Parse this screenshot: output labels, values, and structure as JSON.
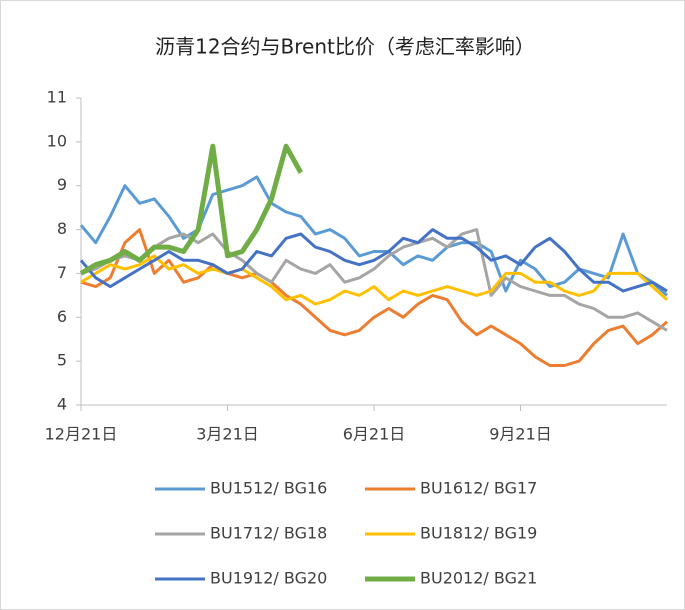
{
  "chart_data": {
    "type": "line",
    "title": "沥青12合约与Brent比价（考虑汇率影响）",
    "x": [
      0,
      9,
      18,
      27,
      36,
      45,
      54,
      63,
      72,
      81,
      90,
      99,
      108,
      117,
      126,
      135,
      144,
      153,
      162,
      171,
      180,
      189,
      198,
      207,
      216,
      225,
      234,
      243,
      252,
      261,
      270,
      279,
      288,
      297,
      306,
      315,
      324,
      333,
      342,
      351,
      360
    ],
    "xlim": [
      0,
      360
    ],
    "xticks": [
      {
        "value": 0,
        "label": "12月21日"
      },
      {
        "value": 90,
        "label": "3月21日"
      },
      {
        "value": 180,
        "label": "6月21日"
      },
      {
        "value": 270,
        "label": "9月21日"
      }
    ],
    "ylim": [
      4,
      11
    ],
    "yticks": [
      4,
      5,
      6,
      7,
      8,
      9,
      10,
      11
    ],
    "grid": false,
    "legend": "bottom",
    "series": [
      {
        "name": "BU1512/ BG16",
        "color": "#5b9bd5",
        "values": [
          8.1,
          7.7,
          8.3,
          9.0,
          8.6,
          8.7,
          8.3,
          7.8,
          8.0,
          8.8,
          8.9,
          9.0,
          9.2,
          8.6,
          8.4,
          8.3,
          7.9,
          8.0,
          7.8,
          7.4,
          7.5,
          7.5,
          7.2,
          7.4,
          7.3,
          7.6,
          7.7,
          7.7,
          7.5,
          6.6,
          7.3,
          7.1,
          6.7,
          6.8,
          7.1,
          7.0,
          6.9,
          7.9,
          7.0,
          6.8,
          6.5
        ]
      },
      {
        "name": "BU1612/ BG17",
        "color": "#ed7d31",
        "values": [
          6.8,
          6.7,
          6.9,
          7.7,
          8.0,
          7.0,
          7.3,
          6.8,
          6.9,
          7.2,
          7.0,
          6.9,
          7.0,
          6.8,
          6.5,
          6.3,
          6.0,
          5.7,
          5.6,
          5.7,
          6.0,
          6.2,
          6.0,
          6.3,
          6.5,
          6.4,
          5.9,
          5.6,
          5.8,
          5.6,
          5.4,
          5.1,
          4.9,
          4.9,
          5.0,
          5.4,
          5.7,
          5.8,
          5.4,
          5.6,
          5.9
        ]
      },
      {
        "name": "BU1712/ BG18",
        "color": "#a5a5a5",
        "values": [
          7.0,
          7.1,
          7.3,
          7.4,
          7.3,
          7.6,
          7.8,
          7.9,
          7.7,
          7.9,
          7.5,
          7.3,
          7.0,
          6.8,
          7.3,
          7.1,
          7.0,
          7.2,
          6.8,
          6.9,
          7.1,
          7.4,
          7.6,
          7.7,
          7.8,
          7.6,
          7.9,
          8.0,
          6.5,
          6.9,
          6.7,
          6.6,
          6.5,
          6.5,
          6.3,
          6.2,
          6.0,
          6.0,
          6.1,
          5.9,
          5.7
        ]
      },
      {
        "name": "BU1812/ BG19",
        "color": "#ffc000",
        "values": [
          6.8,
          7.0,
          7.2,
          7.1,
          7.2,
          7.4,
          7.1,
          7.2,
          7.0,
          7.1,
          7.0,
          7.1,
          6.9,
          6.7,
          6.4,
          6.5,
          6.3,
          6.4,
          6.6,
          6.5,
          6.7,
          6.4,
          6.6,
          6.5,
          6.6,
          6.7,
          6.6,
          6.5,
          6.6,
          7.0,
          7.0,
          6.8,
          6.8,
          6.6,
          6.5,
          6.6,
          7.0,
          7.0,
          7.0,
          6.7,
          6.4
        ]
      },
      {
        "name": "BU1912/ BG20",
        "color": "#4472c4",
        "values": [
          7.3,
          6.9,
          6.7,
          6.9,
          7.1,
          7.3,
          7.5,
          7.3,
          7.3,
          7.2,
          7.0,
          7.1,
          7.5,
          7.4,
          7.8,
          7.9,
          7.6,
          7.5,
          7.3,
          7.2,
          7.3,
          7.5,
          7.8,
          7.7,
          8.0,
          7.8,
          7.8,
          7.6,
          7.3,
          7.4,
          7.2,
          7.6,
          7.8,
          7.5,
          7.1,
          6.8,
          6.8,
          6.6,
          6.7,
          6.8,
          6.6
        ]
      },
      {
        "name": "BU2012/ BG21",
        "color": "#70ad47",
        "values": [
          7.0,
          7.2,
          7.3,
          7.5,
          7.3,
          7.6,
          7.6,
          7.5,
          8.0,
          9.9,
          7.4,
          7.5,
          8.0,
          8.7,
          9.9,
          9.3,
          null,
          null,
          null,
          null,
          null,
          null,
          null,
          null,
          null,
          null,
          null,
          null,
          null,
          null,
          null,
          null,
          null,
          null,
          null,
          null,
          null,
          null,
          null,
          null,
          null
        ]
      }
    ]
  }
}
